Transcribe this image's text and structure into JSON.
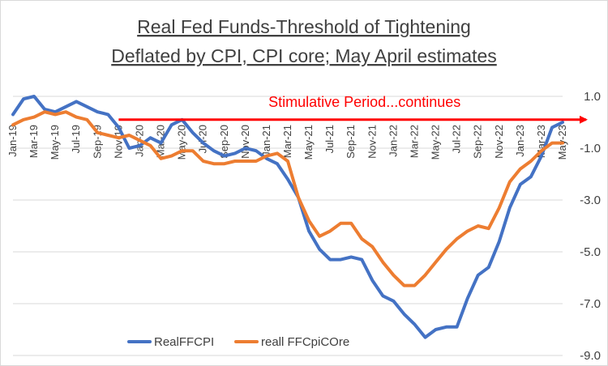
{
  "chart_data": {
    "type": "line",
    "title": [
      "Real Fed Funds-Threshold  of Tightening",
      "Deflated by CPI, CPI core; May April estimates"
    ],
    "xlabel": "",
    "ylabel": "",
    "ylim": [
      -9.0,
      1.0
    ],
    "yticks": [
      1.0,
      -1.0,
      -3.0,
      -5.0,
      -7.0,
      -9.0
    ],
    "ytick_labels": [
      "1.0",
      "-1.0",
      "-3.0",
      "-5.0",
      "-7.0",
      "-9.0"
    ],
    "grid": "horizontal",
    "legend": "bottom-left",
    "categories": [
      "Jan-19",
      "Feb-19",
      "Mar-19",
      "Apr-19",
      "May-19",
      "Jun-19",
      "Jul-19",
      "Aug-19",
      "Sep-19",
      "Oct-19",
      "Nov-19",
      "Dec-19",
      "Jan-20",
      "Feb-20",
      "Mar-20",
      "Apr-20",
      "May-20",
      "Jun-20",
      "Jul-20",
      "Aug-20",
      "Sep-20",
      "Oct-20",
      "Nov-20",
      "Dec-20",
      "Jan-21",
      "Feb-21",
      "Mar-21",
      "Apr-21",
      "May-21",
      "Jun-21",
      "Jul-21",
      "Aug-21",
      "Sep-21",
      "Oct-21",
      "Nov-21",
      "Dec-21",
      "Jan-22",
      "Feb-22",
      "Mar-22",
      "Apr-22",
      "May-22",
      "Jun-22",
      "Jul-22",
      "Aug-22",
      "Sep-22",
      "Oct-22",
      "Nov-22",
      "Dec-22",
      "Jan-23",
      "Feb-23",
      "Mar-23",
      "Apr-23",
      "May-23"
    ],
    "x_tick_labels": [
      "Jan-19",
      "Mar-19",
      "May-19",
      "Jul-19",
      "Sep-19",
      "Nov-19",
      "Jan-20",
      "Mar-20",
      "May-20",
      "Jul-20",
      "Sep-20",
      "Nov-20",
      "Jan-21",
      "Mar-21",
      "May-21",
      "Jul-21",
      "Sep-21",
      "Nov-21",
      "Jan-22",
      "Mar-22",
      "May-22",
      "Jul-22",
      "Sep-22",
      "Nov-22",
      "Jan-23",
      "Mar-23",
      "May-23"
    ],
    "series": [
      {
        "name": "RealFFCPI",
        "color": "#4472c4",
        "values": [
          0.3,
          0.9,
          1.0,
          0.5,
          0.4,
          0.6,
          0.8,
          0.6,
          0.4,
          0.3,
          -0.2,
          -1.0,
          -0.9,
          -0.6,
          -0.8,
          -0.1,
          0.1,
          -0.4,
          -0.8,
          -1.1,
          -1.3,
          -1.2,
          -1.0,
          -1.1,
          -1.4,
          -1.6,
          -2.2,
          -2.9,
          -4.2,
          -4.9,
          -5.3,
          -5.3,
          -5.2,
          -5.3,
          -6.1,
          -6.7,
          -6.9,
          -7.4,
          -7.8,
          -8.3,
          -8.0,
          -7.9,
          -7.9,
          -6.8,
          -5.9,
          -5.6,
          -4.6,
          -3.3,
          -2.4,
          -2.1,
          -1.3,
          -0.2,
          0.0
        ]
      },
      {
        "name": "reall FFCpiCOre",
        "color": "#ed7d31",
        "values": [
          -0.1,
          0.1,
          0.2,
          0.4,
          0.3,
          0.4,
          0.2,
          0.1,
          -0.4,
          -0.5,
          -0.6,
          -0.5,
          -0.7,
          -0.9,
          -1.4,
          -1.3,
          -1.1,
          -1.1,
          -1.5,
          -1.6,
          -1.6,
          -1.5,
          -1.5,
          -1.5,
          -1.3,
          -1.2,
          -1.5,
          -2.9,
          -3.8,
          -4.4,
          -4.2,
          -3.9,
          -3.9,
          -4.5,
          -4.8,
          -5.4,
          -5.9,
          -6.3,
          -6.3,
          -5.9,
          -5.4,
          -4.9,
          -4.5,
          -4.2,
          -4.0,
          -4.1,
          -3.3,
          -2.3,
          -1.8,
          -1.5,
          -1.1,
          -0.8,
          -0.8
        ]
      }
    ],
    "annotations": [
      {
        "text": "Stimulative Period...continues",
        "color": "#ff0000",
        "arrow_from_category": "Nov-19",
        "arrow_to_category": "May-23",
        "arrow_y": 0.1
      }
    ]
  }
}
